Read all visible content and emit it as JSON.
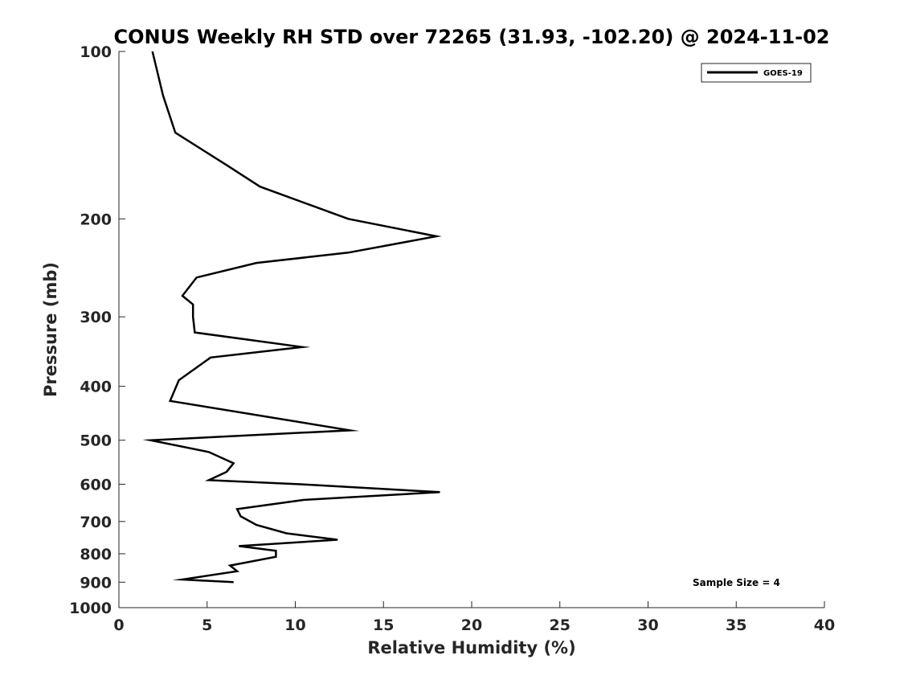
{
  "chart_data": {
    "type": "line",
    "title": "CONUS Weekly RH STD over 72265 (31.93, -102.20) @ 2024-11-02",
    "xlabel": "Relative Humidity (%)",
    "ylabel": "Pressure (mb)",
    "xlim": [
      0,
      40
    ],
    "ylim": [
      100,
      1000
    ],
    "yscale": "log",
    "yreversed": true,
    "grid": false,
    "legend_position": "top-right",
    "xticks": [
      0,
      5,
      10,
      15,
      20,
      25,
      30,
      35,
      40
    ],
    "xtick_labels": [
      "0",
      "5",
      "10",
      "15",
      "20",
      "25",
      "30",
      "35",
      "40"
    ],
    "yticks": [
      100,
      200,
      300,
      400,
      500,
      600,
      700,
      800,
      900,
      1000
    ],
    "ytick_labels": [
      "100",
      "200",
      "300",
      "400",
      "500",
      "600",
      "700",
      "800",
      "900",
      "1000"
    ],
    "series": [
      {
        "name": "GOES-19",
        "color": "#000000",
        "x": [
          1.9,
          2.5,
          3.2,
          6.1,
          8.0,
          13.0,
          18.0,
          13.0,
          7.8,
          4.4,
          3.6,
          4.2,
          4.2,
          4.3,
          10.4,
          5.2,
          3.4,
          2.9,
          13.1,
          1.8,
          5.1,
          6.5,
          6.1,
          5.1,
          10.3,
          18.2,
          10.5,
          6.7,
          6.9,
          7.8,
          9.5,
          12.4,
          6.8,
          8.9,
          8.9,
          6.3,
          6.7,
          3.6,
          6.5
        ],
        "y": [
          100,
          120,
          140,
          160,
          175,
          200,
          215,
          230,
          240,
          255,
          275,
          285,
          300,
          320,
          340,
          355,
          390,
          425,
          480,
          500,
          525,
          550,
          570,
          590,
          600,
          620,
          640,
          665,
          685,
          710,
          735,
          755,
          775,
          790,
          810,
          840,
          860,
          890,
          900
        ]
      }
    ],
    "annotations": [
      "Sample Size = 4"
    ]
  }
}
